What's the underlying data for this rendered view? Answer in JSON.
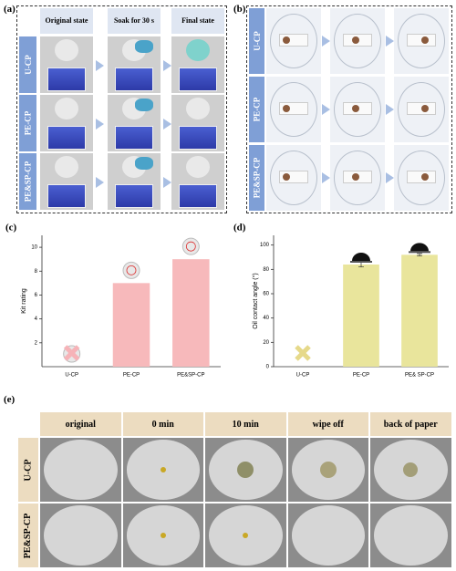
{
  "panel_a": {
    "label": "(a)",
    "columns": [
      "Original state",
      "Soak for 30 s",
      "Final state"
    ],
    "rows": [
      "U-CP",
      "PE-CP",
      "PE&SP-CP"
    ]
  },
  "panel_b": {
    "label": "(b)",
    "rows": [
      "U-CP",
      "PE-CP",
      "PE&SP-CP"
    ]
  },
  "chart_data": [
    {
      "type": "bar",
      "label": "(c)",
      "ylabel": "Kit rating",
      "categories": [
        "U-CP",
        "PE-CP",
        "PE&SP-CP"
      ],
      "values": [
        0,
        7,
        9
      ],
      "color": "#f7b9bb",
      "ylim": [
        0,
        11
      ],
      "yticks": [
        2,
        4,
        6,
        8,
        10
      ]
    },
    {
      "type": "bar",
      "label": "(d)",
      "ylabel": "Oil contact angle (°)",
      "categories": [
        "U-CP",
        "PE-CP",
        "PE& SP-CP"
      ],
      "values": [
        0,
        84,
        92
      ],
      "errors": [
        null,
        2,
        1
      ],
      "color": "#e9e59c",
      "ylim": [
        0,
        108
      ],
      "yticks": [
        0,
        20,
        40,
        60,
        80,
        100
      ]
    }
  ],
  "panel_e": {
    "label": "(e)",
    "columns": [
      "original",
      "0 min",
      "10 min",
      "wipe off",
      "back of paper"
    ],
    "rows": [
      "U-CP",
      "PE&SP-CP"
    ]
  }
}
